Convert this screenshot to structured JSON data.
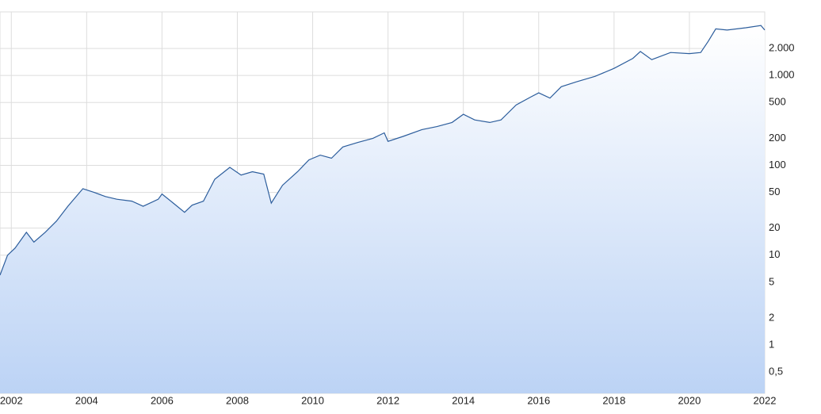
{
  "chart_data": {
    "type": "line",
    "log_scale_y": true,
    "grid": true,
    "color": "#2c5d9c",
    "xlim": [
      2001.7,
      2022
    ],
    "xticks": [
      2002,
      2004,
      2006,
      2008,
      2010,
      2012,
      2014,
      2016,
      2018,
      2020,
      2022
    ],
    "ylim": [
      0.29,
      5100
    ],
    "yticks": [
      {
        "value": 0.5,
        "label": "0,5"
      },
      1,
      2,
      5,
      10,
      20,
      50,
      100,
      200,
      500,
      {
        "value": 1000,
        "label": "1.000"
      },
      {
        "value": 2000,
        "label": "2.000"
      }
    ],
    "x": [
      2001.7,
      2001.9,
      2002.1,
      2002.4,
      2002.6,
      2002.9,
      2003.2,
      2003.5,
      2003.9,
      2004.2,
      2004.5,
      2004.8,
      2005.2,
      2005.5,
      2005.9,
      2006.0,
      2006.3,
      2006.6,
      2006.8,
      2007.1,
      2007.4,
      2007.8,
      2008.1,
      2008.4,
      2008.7,
      2008.9,
      2009.2,
      2009.6,
      2009.9,
      2010.2,
      2010.5,
      2010.8,
      2011.2,
      2011.6,
      2011.9,
      2012.0,
      2012.4,
      2012.9,
      2013.3,
      2013.7,
      2014.0,
      2014.3,
      2014.7,
      2015.0,
      2015.4,
      2015.8,
      2016.0,
      2016.3,
      2016.6,
      2017.0,
      2017.5,
      2018.0,
      2018.5,
      2018.7,
      2019.0,
      2019.5,
      2020.0,
      2020.3,
      2020.5,
      2020.7,
      2021.0,
      2021.5,
      2021.9,
      2022.0
    ],
    "values": [
      6,
      10,
      12,
      18,
      14,
      18,
      24,
      35,
      55,
      50,
      45,
      42,
      40,
      35,
      42,
      48,
      38,
      30,
      36,
      40,
      70,
      95,
      78,
      85,
      80,
      38,
      60,
      85,
      115,
      130,
      120,
      160,
      180,
      200,
      230,
      185,
      210,
      250,
      270,
      300,
      370,
      320,
      300,
      320,
      470,
      580,
      640,
      560,
      750,
      850,
      980,
      1200,
      1550,
      1850,
      1500,
      1800,
      1750,
      1800,
      2400,
      3300,
      3200,
      3400,
      3600,
      3200
    ]
  }
}
